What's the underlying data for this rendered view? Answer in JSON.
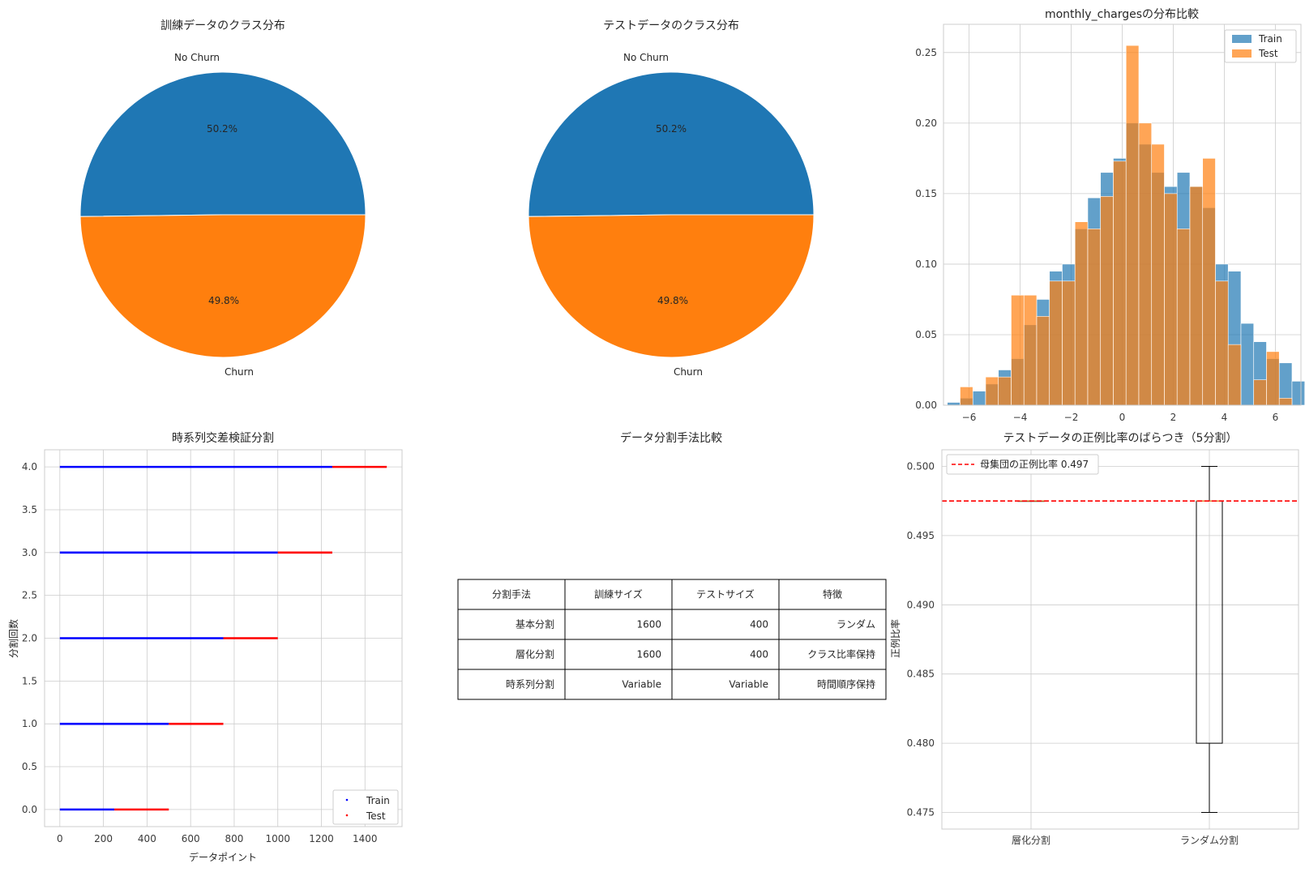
{
  "colors": {
    "blue": "#1f77b4",
    "orange": "#ff7f0e",
    "train_line": "#0000ff",
    "test_line": "#ff0000",
    "ref_line": "#ff0000"
  },
  "chart_data": [
    {
      "type": "pie",
      "title": "訓練データのクラス分布",
      "labels": [
        "No Churn",
        "Churn"
      ],
      "values": [
        50.2,
        49.8
      ],
      "autopct_labels": [
        "50.2%",
        "49.8%"
      ],
      "colors": [
        "#1f77b4",
        "#ff7f0e"
      ]
    },
    {
      "type": "pie",
      "title": "テストデータのクラス分布",
      "labels": [
        "No Churn",
        "Churn"
      ],
      "values": [
        50.2,
        49.8
      ],
      "autopct_labels": [
        "50.2%",
        "49.8%"
      ],
      "colors": [
        "#1f77b4",
        "#ff7f0e"
      ]
    },
    {
      "type": "bar",
      "subtype": "histogram",
      "title": "monthly_chargesの分布比較",
      "xlim": [
        -7.0,
        7.0
      ],
      "ylim": [
        0,
        0.27
      ],
      "xticks": [
        -6,
        -4,
        -2,
        0,
        2,
        4,
        6
      ],
      "yticks": [
        0.0,
        0.05,
        0.1,
        0.15,
        0.2,
        0.25
      ],
      "ytick_labels": [
        "0.00",
        "0.05",
        "0.10",
        "0.15",
        "0.20",
        "0.25"
      ],
      "legend": "top-right",
      "grid": true,
      "series": [
        {
          "name": "Train",
          "bin_start": -6.85,
          "bin_width": 0.5,
          "values": [
            0.002,
            0.005,
            0.01,
            0.015,
            0.025,
            0.033,
            0.057,
            0.075,
            0.095,
            0.1,
            0.125,
            0.147,
            0.165,
            0.175,
            0.2,
            0.185,
            0.165,
            0.155,
            0.165,
            0.155,
            0.14,
            0.1,
            0.095,
            0.058,
            0.045,
            0.033,
            0.03,
            0.017,
            0.014,
            0.007
          ]
        },
        {
          "name": "Test",
          "bin_start": -6.35,
          "bin_width": 0.5,
          "values": [
            0.013,
            0.0,
            0.02,
            0.02,
            0.078,
            0.078,
            0.063,
            0.088,
            0.088,
            0.13,
            0.125,
            0.148,
            0.173,
            0.255,
            0.2,
            0.185,
            0.15,
            0.125,
            0.155,
            0.175,
            0.088,
            0.043,
            0.0,
            0.018,
            0.038,
            0.005,
            0.0,
            0.0
          ]
        }
      ]
    },
    {
      "type": "line",
      "title": "時系列交差検証分割",
      "xlabel": "データポイント",
      "ylabel": "分割回数",
      "xlim": [
        -70,
        1570
      ],
      "ylim": [
        -0.2,
        4.2
      ],
      "xticks": [
        0,
        200,
        400,
        600,
        800,
        1000,
        1200,
        1400
      ],
      "yticks": [
        0.0,
        0.5,
        1.0,
        1.5,
        2.0,
        2.5,
        3.0,
        3.5,
        4.0
      ],
      "ytick_labels": [
        "0.0",
        "0.5",
        "1.0",
        "1.5",
        "2.0",
        "2.5",
        "3.0",
        "3.5",
        "4.0"
      ],
      "legend": "bottom-right",
      "grid": true,
      "series": [
        {
          "name": "Train",
          "segments": [
            [
              0,
              0,
              250
            ],
            [
              1,
              0,
              500
            ],
            [
              2,
              0,
              750
            ],
            [
              3,
              0,
              1000
            ],
            [
              4,
              0,
              1250
            ]
          ]
        },
        {
          "name": "Test",
          "segments": [
            [
              0,
              250,
              500
            ],
            [
              1,
              500,
              750
            ],
            [
              2,
              750,
              1000
            ],
            [
              3,
              1000,
              1250
            ],
            [
              4,
              1250,
              1500
            ]
          ]
        }
      ]
    },
    {
      "type": "table",
      "title": "データ分割手法比較",
      "columns": [
        "分割手法",
        "訓練サイズ",
        "テストサイズ",
        "特徴"
      ],
      "rows": [
        [
          "基本分割",
          "1600",
          "400",
          "ランダム"
        ],
        [
          "層化分割",
          "1600",
          "400",
          "クラス比率保持"
        ],
        [
          "時系列分割",
          "Variable",
          "Variable",
          "時間順序保持"
        ]
      ]
    },
    {
      "type": "box",
      "title": "テストデータの正例比率のばらつき（5分割）",
      "ylabel": "正例比率",
      "categories": [
        "層化分割",
        "ランダム分割"
      ],
      "ylim": [
        0.4738,
        0.5012
      ],
      "yticks": [
        0.475,
        0.48,
        0.485,
        0.49,
        0.495,
        0.5
      ],
      "ytick_labels": [
        "0.475",
        "0.480",
        "0.485",
        "0.490",
        "0.495",
        "0.500"
      ],
      "boxes": [
        {
          "min": 0.4975,
          "q1": 0.4975,
          "median": 0.4975,
          "q3": 0.4975,
          "max": 0.4975
        },
        {
          "min": 0.475,
          "q1": 0.48,
          "median": 0.4975,
          "q3": 0.4975,
          "max": 0.5
        }
      ],
      "reference_line": {
        "value": 0.4975,
        "label": "母集団の正例比率 0.497"
      },
      "legend": "top-left",
      "grid": true
    }
  ]
}
